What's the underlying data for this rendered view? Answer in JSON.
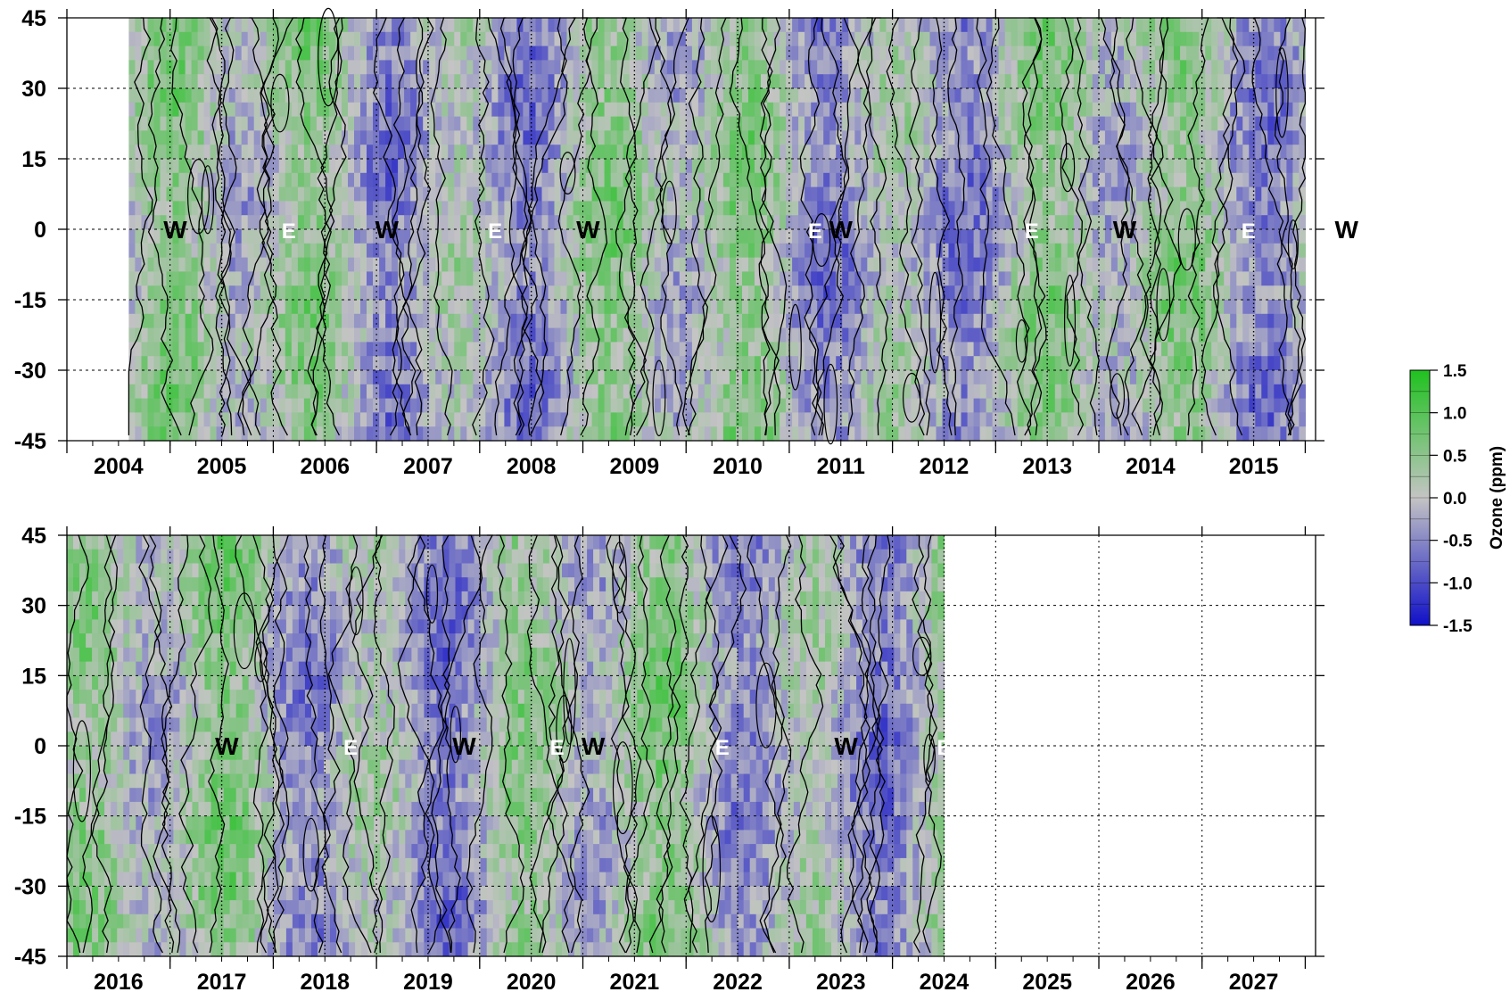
{
  "chart_data": [
    {
      "type": "heatmap",
      "panel": "top",
      "x_tick_labels": [
        "2004",
        "2005",
        "2006",
        "2007",
        "2008",
        "2009",
        "2010",
        "2011",
        "2012",
        "2013",
        "2014",
        "2015"
      ],
      "xlim": [
        2003.0,
        2015.1
      ],
      "data_start": 2003.6,
      "data_end": 2015.0,
      "y_tick_labels": [
        "45",
        "30",
        "15",
        "0",
        "-15",
        "-30",
        "-45"
      ],
      "ylim": [
        -45,
        45
      ],
      "grid": true,
      "qbo_phases": [
        {
          "label": "W",
          "x": 2003.55
        },
        {
          "label": "E",
          "x": 2004.65
        },
        {
          "label": "W",
          "x": 2005.6
        },
        {
          "label": "E",
          "x": 2006.65
        },
        {
          "label": "W",
          "x": 2007.55
        },
        {
          "label": "E",
          "x": 2009.75
        },
        {
          "label": "W",
          "x": 2010.0
        },
        {
          "label": "E",
          "x": 2011.85
        },
        {
          "label": "W",
          "x": 2012.75
        },
        {
          "label": "E",
          "x": 2013.95
        },
        {
          "label": "W",
          "x": 2014.9
        }
      ],
      "phase_transitions": [
        2004.0,
        2005.0,
        2006.0,
        2007.0,
        2008.0,
        2009.0,
        2010.0,
        2011.0,
        2012.0,
        2013.0,
        2014.0
      ]
    },
    {
      "type": "heatmap",
      "panel": "bottom",
      "x_tick_labels": [
        "2016",
        "2017",
        "2018",
        "2019",
        "2020",
        "2021",
        "2022",
        "2023",
        "2024",
        "2025",
        "2026",
        "2027"
      ],
      "xlim": [
        2015.0,
        2027.1
      ],
      "data_start": 2015.0,
      "data_end": 2023.5,
      "y_tick_labels": [
        "45",
        "30",
        "15",
        "0",
        "-15",
        "-30",
        "-45"
      ],
      "ylim": [
        -45,
        45
      ],
      "grid": true,
      "qbo_phases": [
        {
          "label": "W",
          "x": 2016.05
        },
        {
          "label": "E",
          "x": 2017.25
        },
        {
          "label": "W",
          "x": 2018.35
        },
        {
          "label": "E",
          "x": 2019.25
        },
        {
          "label": "W",
          "x": 2019.6
        },
        {
          "label": "E",
          "x": 2020.85
        },
        {
          "label": "W",
          "x": 2022.05
        },
        {
          "label": "E",
          "x": 2023.0
        }
      ],
      "phase_transitions": [
        2016.0,
        2017.0,
        2018.0,
        2019.0,
        2020.0,
        2021.0,
        2022.0,
        2023.0
      ]
    }
  ],
  "colorbar": {
    "title": "Ozone (ppm)",
    "ticks": [
      "1.5",
      "1.0",
      "0.5",
      "0.0",
      "-0.5",
      "-1.0",
      "-1.5"
    ],
    "range": [
      -1.5,
      1.5
    ],
    "colors": {
      "positive": "#22c022",
      "neutral": "#c8c8c8",
      "negative": "#1a1ac8"
    }
  }
}
